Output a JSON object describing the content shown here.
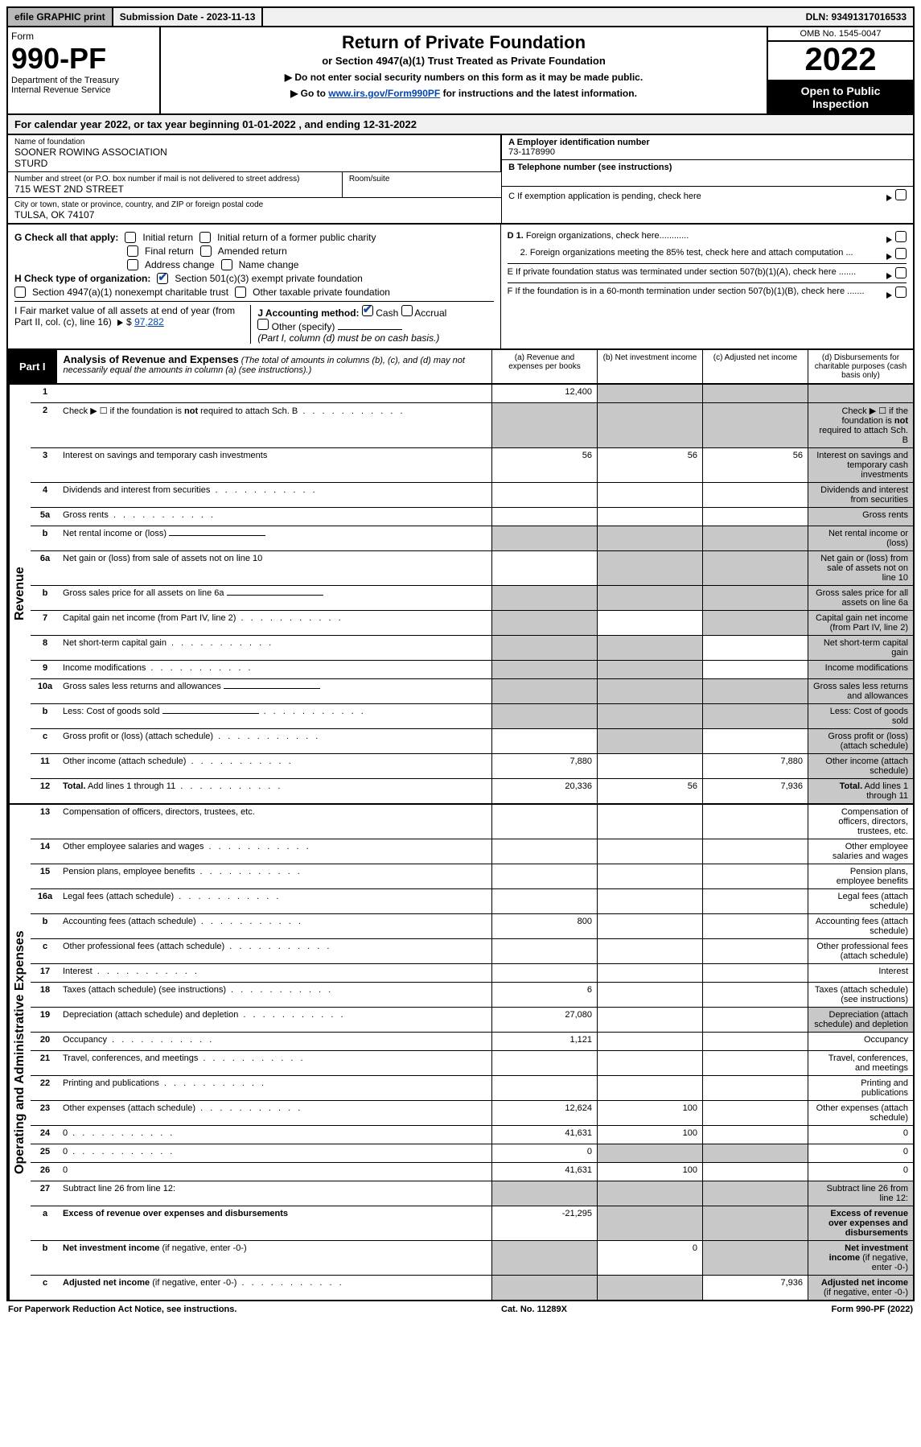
{
  "topbar": {
    "efile": "efile GRAPHIC print",
    "sub_label": "Submission Date - 2023-11-13",
    "dln": "DLN: 93491317016533"
  },
  "header": {
    "form": "Form",
    "form_number": "990-PF",
    "dept": "Department of the Treasury",
    "irs": "Internal Revenue Service",
    "title": "Return of Private Foundation",
    "subtitle": "or Section 4947(a)(1) Trust Treated as Private Foundation",
    "instr1": "▶ Do not enter social security numbers on this form as it may be made public.",
    "instr2_pre": "▶ Go to ",
    "instr2_link": "www.irs.gov/Form990PF",
    "instr2_post": " for instructions and the latest information.",
    "omb": "OMB No. 1545-0047",
    "year": "2022",
    "open_public": "Open to Public Inspection"
  },
  "period": "For calendar year 2022, or tax year beginning 01-01-2022       , and ending 12-31-2022",
  "entity": {
    "name_label": "Name of foundation",
    "name": "SOONER ROWING ASSOCIATION",
    "name2": "STURD",
    "street_label": "Number and street (or P.O. box number if mail is not delivered to street address)",
    "street": "715 WEST 2ND STREET",
    "room_label": "Room/suite",
    "city_label": "City or town, state or province, country, and ZIP or foreign postal code",
    "city": "TULSA, OK  74107",
    "A_label": "A Employer identification number",
    "A": "73-1178990",
    "B_label": "B Telephone number (see instructions)",
    "C": "C If exemption application is pending, check here",
    "D1": "D 1. Foreign organizations, check here............",
    "D2": "2. Foreign organizations meeting the 85% test, check here and attach computation ...",
    "E": "E  If private foundation status was terminated under section 507(b)(1)(A), check here .......",
    "F": "F  If the foundation is in a 60-month termination under section 507(b)(1)(B), check here .......",
    "G": "G Check all that apply:",
    "G_opts": [
      "Initial return",
      "Initial return of a former public charity",
      "Final return",
      "Amended return",
      "Address change",
      "Name change"
    ],
    "H": "H Check type of organization:",
    "H_opt1": "Section 501(c)(3) exempt private foundation",
    "H_opt2": "Section 4947(a)(1) nonexempt charitable trust",
    "H_opt3": "Other taxable private foundation",
    "I_label": "I Fair market value of all assets at end of year (from Part II, col. (c), line 16)",
    "I_val": "97,282",
    "J_label": "J Accounting method:",
    "J_cash": "Cash",
    "J_accrual": "Accrual",
    "J_other": "Other (specify)",
    "J_note": "(Part I, column (d) must be on cash basis.)"
  },
  "part1": {
    "label": "Part I",
    "title": "Analysis of Revenue and Expenses",
    "note": "(The total of amounts in columns (b), (c), and (d) may not necessarily equal the amounts in column (a) (see instructions).)",
    "col_a": "(a)  Revenue and expenses per books",
    "col_b": "(b)  Net investment income",
    "col_c": "(c)  Adjusted net income",
    "col_d": "(d)  Disbursements for charitable purposes (cash basis only)"
  },
  "sections": {
    "revenue": "Revenue",
    "expenses": "Operating and Administrative Expenses"
  },
  "rows": [
    {
      "n": "1",
      "d": "",
      "a": "12,400",
      "b": "",
      "c": "",
      "grey": [
        "b",
        "c",
        "d"
      ]
    },
    {
      "n": "2",
      "d": "Check ▶ ☐ if the foundation is <b>not</b> required to attach Sch. B",
      "dots": true,
      "grey_all": true
    },
    {
      "n": "3",
      "d": "Interest on savings and temporary cash investments",
      "a": "56",
      "b": "56",
      "c": "56",
      "grey": [
        "d"
      ]
    },
    {
      "n": "4",
      "d": "Dividends and interest from securities",
      "dots": true,
      "grey": [
        "d"
      ]
    },
    {
      "n": "5a",
      "d": "Gross rents",
      "dots": true,
      "grey": [
        "d"
      ]
    },
    {
      "n": "b",
      "d": "Net rental income or (loss)",
      "line_after": true,
      "grey_all": true
    },
    {
      "n": "6a",
      "d": "Net gain or (loss) from sale of assets not on line 10",
      "grey": [
        "b",
        "c",
        "d"
      ]
    },
    {
      "n": "b",
      "d": "Gross sales price for all assets on line 6a",
      "line_after": true,
      "grey_all": true
    },
    {
      "n": "7",
      "d": "Capital gain net income (from Part IV, line 2)",
      "dots": true,
      "grey": [
        "a",
        "c",
        "d"
      ]
    },
    {
      "n": "8",
      "d": "Net short-term capital gain",
      "dots": true,
      "grey": [
        "a",
        "b",
        "d"
      ]
    },
    {
      "n": "9",
      "d": "Income modifications",
      "dots": true,
      "grey": [
        "a",
        "b",
        "d"
      ]
    },
    {
      "n": "10a",
      "d": "Gross sales less returns and allowances",
      "line_after": true,
      "grey_all": true
    },
    {
      "n": "b",
      "d": "Less: Cost of goods sold",
      "dots": true,
      "line_after": true,
      "grey_all": true
    },
    {
      "n": "c",
      "d": "Gross profit or (loss) (attach schedule)",
      "dots": true,
      "grey": [
        "b",
        "d"
      ]
    },
    {
      "n": "11",
      "d": "Other income (attach schedule)",
      "dots": true,
      "a": "7,880",
      "c": "7,880",
      "grey": [
        "d"
      ]
    },
    {
      "n": "12",
      "d": "<b>Total.</b> Add lines 1 through 11",
      "dots": true,
      "a": "20,336",
      "b": "56",
      "c": "7,936",
      "grey": [
        "d"
      ]
    }
  ],
  "exp_rows": [
    {
      "n": "13",
      "d": "Compensation of officers, directors, trustees, etc."
    },
    {
      "n": "14",
      "d": "Other employee salaries and wages",
      "dots": true
    },
    {
      "n": "15",
      "d": "Pension plans, employee benefits",
      "dots": true
    },
    {
      "n": "16a",
      "d": "Legal fees (attach schedule)",
      "dots": true
    },
    {
      "n": "b",
      "d": "Accounting fees (attach schedule)",
      "dots": true,
      "a": "800"
    },
    {
      "n": "c",
      "d": "Other professional fees (attach schedule)",
      "dots": true
    },
    {
      "n": "17",
      "d": "Interest",
      "dots": true
    },
    {
      "n": "18",
      "d": "Taxes (attach schedule) (see instructions)",
      "dots": true,
      "a": "6"
    },
    {
      "n": "19",
      "d": "Depreciation (attach schedule) and depletion",
      "dots": true,
      "a": "27,080",
      "grey": [
        "d"
      ]
    },
    {
      "n": "20",
      "d": "Occupancy",
      "dots": true,
      "a": "1,121"
    },
    {
      "n": "21",
      "d": "Travel, conferences, and meetings",
      "dots": true
    },
    {
      "n": "22",
      "d": "Printing and publications",
      "dots": true
    },
    {
      "n": "23",
      "d": "Other expenses (attach schedule)",
      "dots": true,
      "a": "12,624",
      "b": "100"
    },
    {
      "n": "24",
      "d": "0",
      "dots": true,
      "a": "41,631",
      "b": "100"
    },
    {
      "n": "25",
      "d": "0",
      "dots": true,
      "a": "0",
      "grey": [
        "b",
        "c"
      ]
    },
    {
      "n": "26",
      "d": "0",
      "a": "41,631",
      "b": "100"
    },
    {
      "n": "27",
      "d": "Subtract line 26 from line 12:",
      "grey_all": true
    },
    {
      "n": "a",
      "d": "<b>Excess of revenue over expenses and disbursements</b>",
      "a": "-21,295",
      "grey": [
        "b",
        "c",
        "d"
      ]
    },
    {
      "n": "b",
      "d": "<b>Net investment income</b> (if negative, enter -0-)",
      "b": "0",
      "grey": [
        "a",
        "c",
        "d"
      ]
    },
    {
      "n": "c",
      "d": "<b>Adjusted net income</b> (if negative, enter -0-)",
      "dots": true,
      "c": "7,936",
      "grey": [
        "a",
        "b",
        "d"
      ]
    }
  ],
  "footer": {
    "left": "For Paperwork Reduction Act Notice, see instructions.",
    "mid": "Cat. No. 11289X",
    "right": "Form 990-PF (2022)"
  }
}
